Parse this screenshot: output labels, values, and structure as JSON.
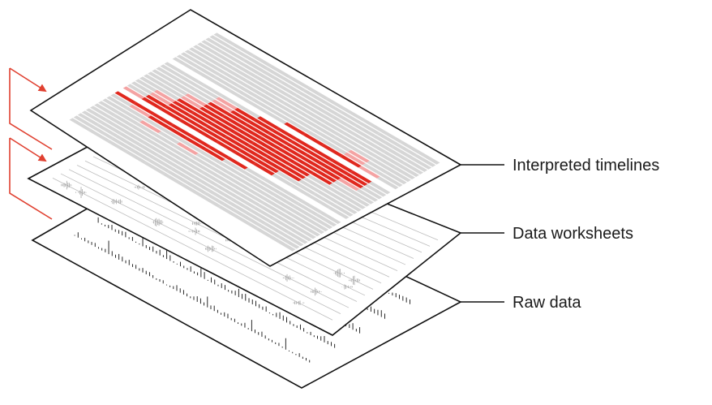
{
  "labels": {
    "top": "Interpreted timelines",
    "middle": "Data worksheets",
    "bottom": "Raw data"
  },
  "colors": {
    "accent_red": "#e0281e",
    "light_red": "#f4a3a3",
    "gray_bar": "#d6d6d6",
    "outline": "#111111",
    "arrow": "#e04030"
  },
  "icons": {
    "arrow_upper": "bent-arrow-icon",
    "arrow_lower": "bent-arrow-icon"
  }
}
